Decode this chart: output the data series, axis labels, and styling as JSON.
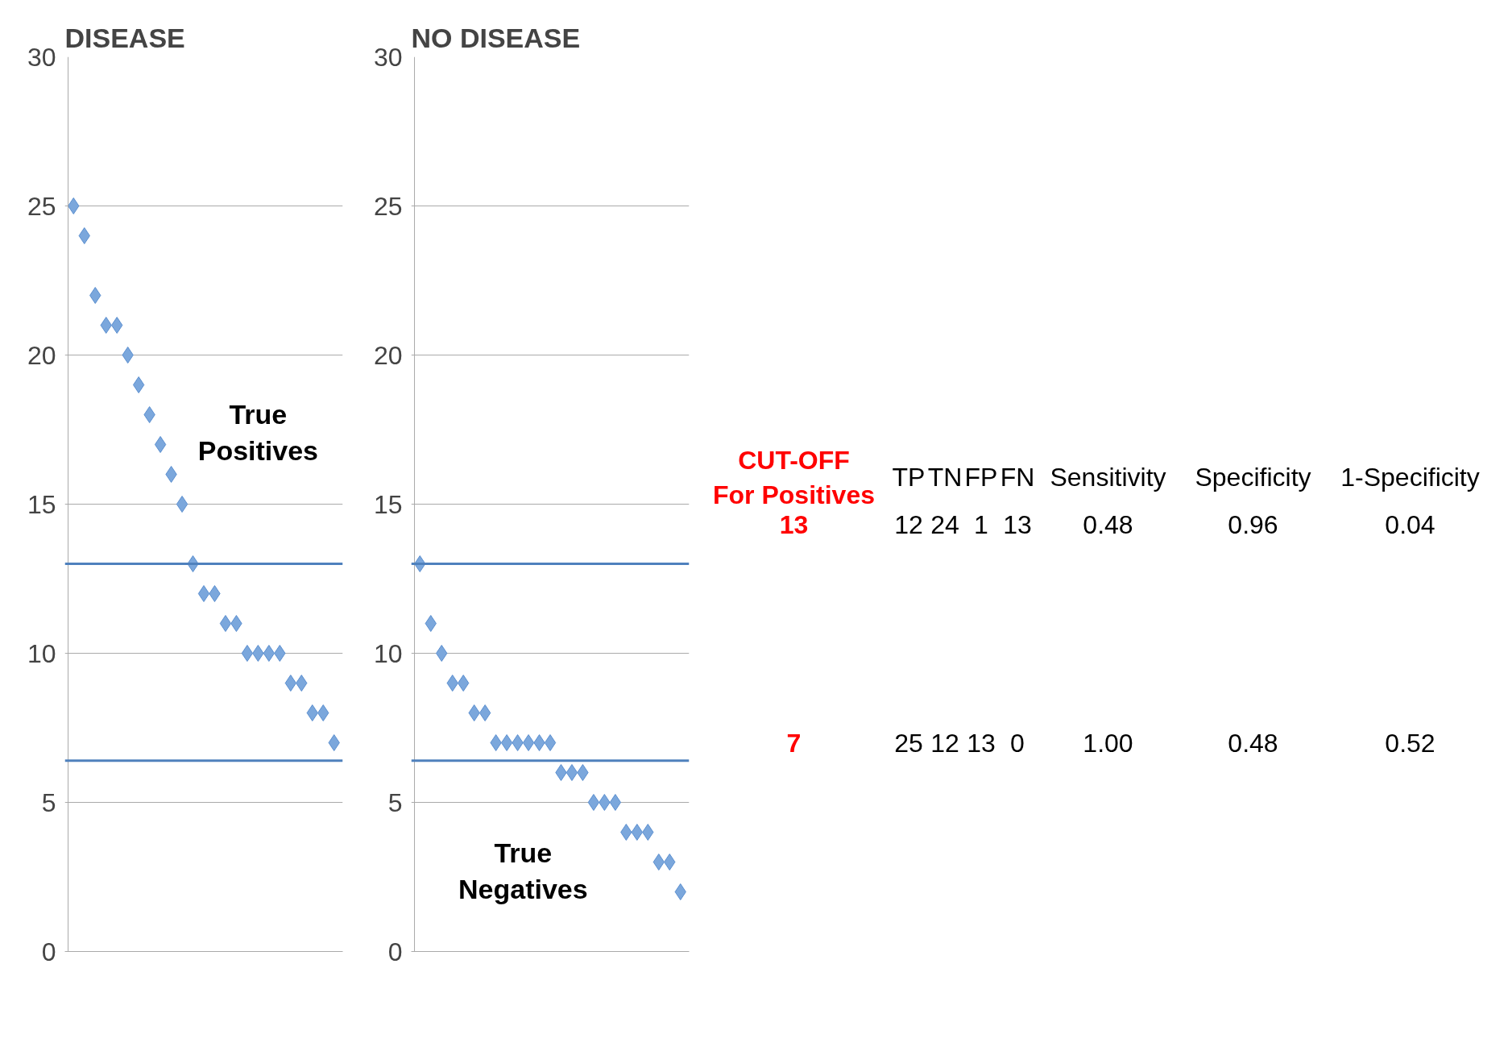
{
  "chart_data": [
    {
      "type": "scatter",
      "title": "DISEASE",
      "categories": [
        null,
        null,
        null,
        null,
        null,
        null,
        null,
        null,
        null,
        null,
        null,
        null,
        null,
        null,
        null,
        null,
        null,
        null,
        null,
        null,
        null,
        null,
        null,
        null,
        null
      ],
      "series": [
        {
          "color": "#7ba7dc",
          "values": [
            25,
            24,
            22,
            21,
            21,
            20,
            19,
            18,
            17,
            16,
            15,
            13,
            12,
            12,
            11,
            11,
            10,
            10,
            10,
            10,
            9,
            9,
            8,
            8,
            7
          ]
        }
      ],
      "ylim": [
        0,
        30
      ],
      "yticks": [
        0,
        5,
        10,
        15,
        20,
        25,
        30
      ],
      "grid": "y",
      "marker": "diamond",
      "ref_lines": [
        {
          "axis": "y",
          "value": 13,
          "color": "#4f81bd"
        },
        {
          "axis": "y",
          "value": 6.4,
          "color": "#4f81bd"
        }
      ],
      "annotations": [
        "True Positives"
      ]
    },
    {
      "type": "scatter",
      "title": "NO DISEASE",
      "categories": [
        null,
        null,
        null,
        null,
        null,
        null,
        null,
        null,
        null,
        null,
        null,
        null,
        null,
        null,
        null,
        null,
        null,
        null,
        null,
        null,
        null,
        null,
        null,
        null,
        null
      ],
      "series": [
        {
          "color": "#7ba7dc",
          "values": [
            13,
            11,
            10,
            9,
            9,
            8,
            8,
            7,
            7,
            7,
            7,
            7,
            7,
            6,
            6,
            6,
            5,
            5,
            5,
            4,
            4,
            4,
            3,
            3,
            2
          ]
        }
      ],
      "ylim": [
        0,
        30
      ],
      "yticks": [
        0,
        5,
        10,
        15,
        20,
        25,
        30
      ],
      "grid": "y",
      "marker": "diamond",
      "ref_lines": [
        {
          "axis": "y",
          "value": 13,
          "color": "#4f81bd"
        },
        {
          "axis": "y",
          "value": 6.4,
          "color": "#4f81bd"
        }
      ],
      "annotations": [
        "True Negatives"
      ]
    },
    {
      "type": "other",
      "categories": [
        "CUT-OFF For Positives",
        "TP",
        "TN",
        "FP",
        "FN",
        "Sensitivity",
        "Specificity",
        "1-Specificity"
      ],
      "annotations": [
        "13",
        "12",
        "24",
        "1",
        "13",
        "0.48",
        "0.96",
        "0.04",
        "7",
        "25",
        "12",
        "13",
        "0",
        "1.00",
        "0.48",
        "0.52"
      ]
    }
  ]
}
